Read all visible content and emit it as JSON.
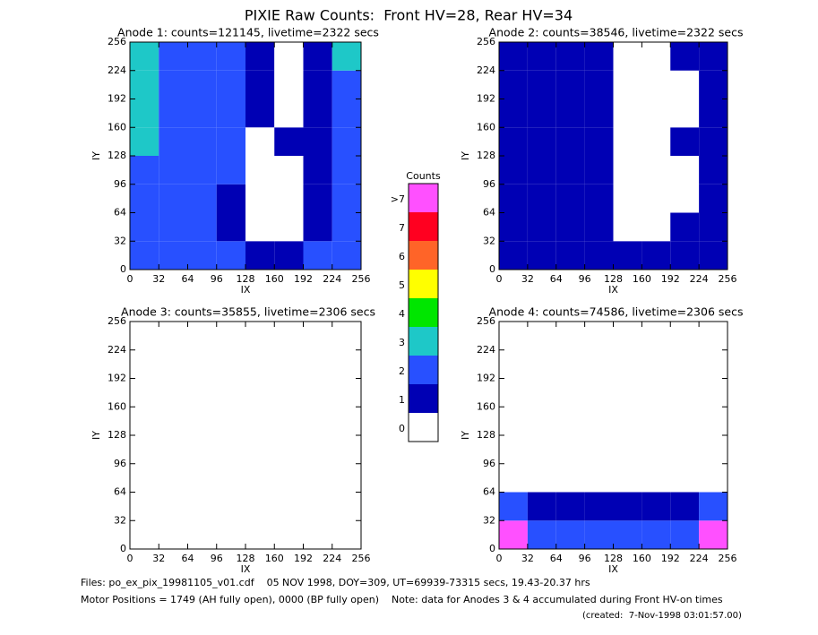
{
  "title": "PIXIE Raw Counts:  Front HV=28, Rear HV=34",
  "chart_data": [
    {
      "type": "heatmap",
      "title": "Anode 1: counts=121145, livetime=2322 secs",
      "xlabel": "IX",
      "ylabel": "IY",
      "xlim": [
        0,
        256
      ],
      "ylim": [
        0,
        256
      ],
      "xticks": [
        0,
        32,
        64,
        96,
        128,
        160,
        192,
        224,
        256
      ],
      "yticks": [
        0,
        32,
        64,
        96,
        128,
        160,
        192,
        224,
        256
      ],
      "x_edges": [
        0,
        32,
        64,
        96,
        128,
        160,
        192,
        224,
        256
      ],
      "y_edges": [
        0,
        32,
        64,
        96,
        128,
        160,
        192,
        224,
        256
      ],
      "z": [
        [
          2,
          2,
          2,
          2,
          1,
          1,
          2,
          2
        ],
        [
          2,
          2,
          2,
          1,
          0,
          0,
          1,
          2
        ],
        [
          2,
          2,
          2,
          1,
          0,
          0,
          1,
          2
        ],
        [
          2,
          2,
          2,
          2,
          0,
          0,
          1,
          2
        ],
        [
          3,
          2,
          2,
          2,
          0,
          1,
          1,
          2
        ],
        [
          3,
          2,
          2,
          2,
          1,
          0,
          1,
          2
        ],
        [
          3,
          2,
          2,
          2,
          1,
          0,
          1,
          2
        ],
        [
          3,
          2,
          2,
          2,
          1,
          0,
          1,
          3
        ]
      ]
    },
    {
      "type": "heatmap",
      "title": "Anode 2: counts=38546, livetime=2322 secs",
      "xlabel": "IX",
      "ylabel": "IY",
      "xlim": [
        0,
        256
      ],
      "ylim": [
        0,
        256
      ],
      "xticks": [
        0,
        32,
        64,
        96,
        128,
        160,
        192,
        224,
        256
      ],
      "yticks": [
        0,
        32,
        64,
        96,
        128,
        160,
        192,
        224,
        256
      ],
      "x_edges": [
        0,
        32,
        64,
        96,
        128,
        160,
        192,
        224,
        256
      ],
      "y_edges": [
        0,
        32,
        64,
        96,
        128,
        160,
        192,
        224,
        256
      ],
      "z": [
        [
          1,
          1,
          1,
          1,
          1,
          1,
          1,
          1
        ],
        [
          1,
          1,
          1,
          1,
          0,
          0,
          1,
          1
        ],
        [
          1,
          1,
          1,
          1,
          0,
          0,
          0,
          1
        ],
        [
          1,
          1,
          1,
          1,
          0,
          0,
          0,
          1
        ],
        [
          1,
          1,
          1,
          1,
          0,
          0,
          1,
          1
        ],
        [
          1,
          1,
          1,
          1,
          0,
          0,
          0,
          1
        ],
        [
          1,
          1,
          1,
          1,
          0,
          0,
          0,
          1
        ],
        [
          1,
          1,
          1,
          1,
          0,
          0,
          1,
          1
        ]
      ]
    },
    {
      "type": "heatmap",
      "title": "Anode 3: counts=35855, livetime=2306 secs",
      "xlabel": "IX",
      "ylabel": "IY",
      "xlim": [
        0,
        256
      ],
      "ylim": [
        0,
        256
      ],
      "xticks": [
        0,
        32,
        64,
        96,
        128,
        160,
        192,
        224,
        256
      ],
      "yticks": [
        0,
        32,
        64,
        96,
        128,
        160,
        192,
        224,
        256
      ],
      "x_edges": [
        0,
        32,
        64,
        96,
        128,
        160,
        192,
        224,
        256
      ],
      "y_edges": [
        0,
        32,
        64,
        96,
        128,
        160,
        192,
        224,
        256
      ],
      "z": [
        [
          0,
          0,
          0,
          0,
          0,
          0,
          0,
          0
        ],
        [
          0,
          0,
          0,
          0,
          0,
          0,
          0,
          0
        ],
        [
          0,
          0,
          0,
          0,
          0,
          0,
          0,
          0
        ],
        [
          0,
          0,
          0,
          0,
          0,
          0,
          0,
          0
        ],
        [
          0,
          0,
          0,
          0,
          0,
          0,
          0,
          0
        ],
        [
          0,
          0,
          0,
          0,
          0,
          0,
          0,
          0
        ],
        [
          0,
          0,
          0,
          0,
          0,
          0,
          0,
          0
        ],
        [
          0,
          0,
          0,
          0,
          0,
          0,
          0,
          0
        ]
      ]
    },
    {
      "type": "heatmap",
      "title": "Anode 4: counts=74586, livetime=2306 secs",
      "xlabel": "IX",
      "ylabel": "IY",
      "xlim": [
        0,
        256
      ],
      "ylim": [
        0,
        256
      ],
      "xticks": [
        0,
        32,
        64,
        96,
        128,
        160,
        192,
        224,
        256
      ],
      "yticks": [
        0,
        32,
        64,
        96,
        128,
        160,
        192,
        224,
        256
      ],
      "x_edges": [
        0,
        32,
        64,
        96,
        128,
        160,
        192,
        224,
        256
      ],
      "y_edges": [
        0,
        32,
        64,
        96,
        128,
        160,
        192,
        224,
        256
      ],
      "z": [
        [
          8,
          2,
          2,
          2,
          2,
          2,
          2,
          8
        ],
        [
          2,
          1,
          1,
          1,
          1,
          1,
          1,
          2
        ],
        [
          0,
          0,
          0,
          0,
          0,
          0,
          0,
          0
        ],
        [
          0,
          0,
          0,
          0,
          0,
          0,
          0,
          0
        ],
        [
          0,
          0,
          0,
          0,
          0,
          0,
          0,
          0
        ],
        [
          0,
          0,
          0,
          0,
          0,
          0,
          0,
          0
        ],
        [
          0,
          0,
          0,
          0,
          0,
          0,
          0,
          0
        ],
        [
          0,
          0,
          0,
          0,
          0,
          0,
          0,
          0
        ]
      ]
    }
  ],
  "colorbar": {
    "title": "Counts",
    "levels": [
      0,
      1,
      2,
      3,
      4,
      5,
      6,
      7,
      {
        "value": 8,
        "label": ">7"
      }
    ],
    "colors": [
      "#ffffff",
      "#0000b4",
      "#2850ff",
      "#1ec8c8",
      "#00e600",
      "#ffff00",
      "#ff6428",
      "#ff0020",
      "#ff50ff"
    ]
  },
  "footer": [
    "Files: po_ex_pix_19981105_v01.cdf    05 NOV 1998, DOY=309, UT=69939-73315 secs, 19.43-20.37 hrs",
    "Motor Positions = 1749 (AH fully open), 0000 (BP fully open)    Note: data for Anodes 3 & 4 accumulated during Front HV-on times",
    "(created:  7-Nov-1998 03:01:57.00)"
  ]
}
